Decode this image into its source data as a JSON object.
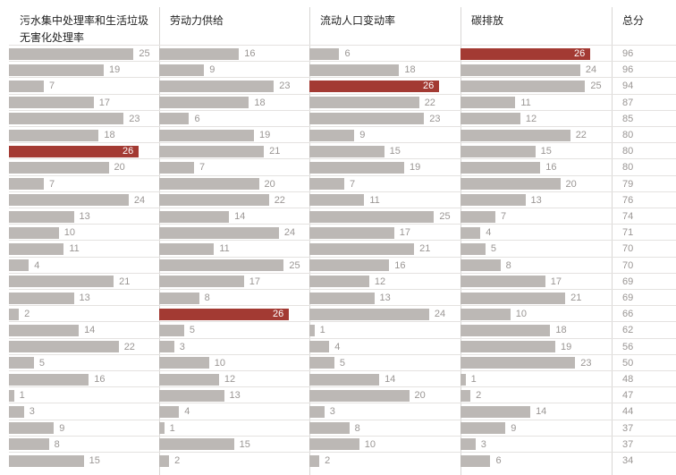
{
  "chart_data": {
    "type": "bar",
    "headers": [
      "污水集中处理率和生活垃圾无害化处理率",
      "劳动力供给",
      "流动人口变动率",
      "碳排放",
      "总分"
    ],
    "highlight_value": 26,
    "colors": {
      "bar": "#bcb8b5",
      "highlight": "#a33a33"
    },
    "series": [
      {
        "name": "污水集中处理率和生活垃圾无害化处理率",
        "values": [
          25,
          19,
          7,
          17,
          23,
          18,
          26,
          20,
          7,
          24,
          13,
          10,
          11,
          4,
          21,
          13,
          2,
          14,
          22,
          5,
          16,
          1,
          3,
          9,
          8,
          15
        ]
      },
      {
        "name": "劳动力供给",
        "values": [
          16,
          9,
          23,
          18,
          6,
          19,
          21,
          7,
          20,
          22,
          14,
          24,
          11,
          25,
          17,
          8,
          26,
          5,
          3,
          10,
          12,
          13,
          4,
          1,
          15,
          2
        ]
      },
      {
        "name": "流动人口变动率",
        "values": [
          6,
          18,
          26,
          22,
          23,
          9,
          15,
          19,
          7,
          11,
          25,
          17,
          21,
          16,
          12,
          13,
          24,
          1,
          4,
          5,
          14,
          20,
          3,
          8,
          10,
          2
        ]
      },
      {
        "name": "碳排放",
        "values": [
          26,
          24,
          25,
          11,
          12,
          22,
          15,
          16,
          20,
          13,
          7,
          4,
          5,
          8,
          17,
          21,
          10,
          18,
          19,
          23,
          1,
          2,
          14,
          9,
          3,
          6
        ]
      }
    ],
    "totals": {
      "name": "总分",
      "values": [
        96,
        96,
        94,
        87,
        85,
        80,
        80,
        80,
        79,
        76,
        74,
        71,
        70,
        70,
        69,
        69,
        66,
        62,
        56,
        50,
        48,
        47,
        44,
        37,
        37,
        34
      ]
    },
    "xlim": [
      0,
      26
    ]
  }
}
